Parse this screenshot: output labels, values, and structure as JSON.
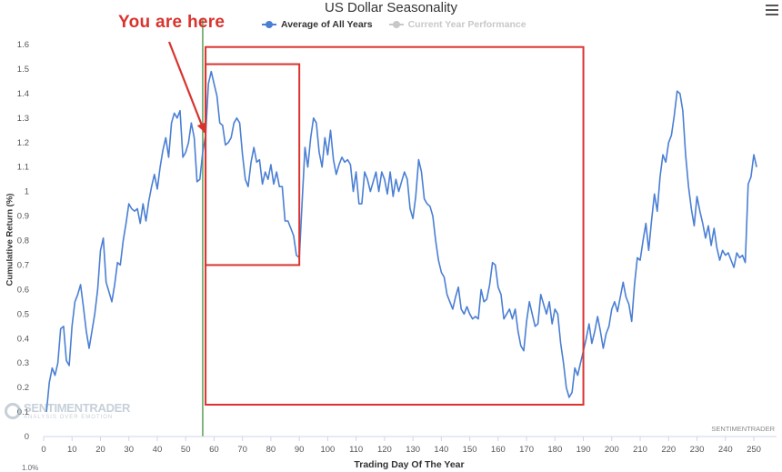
{
  "menu_icon": "hamburger-menu-icon",
  "annotation": {
    "text": "You are here",
    "arrow_to_day": 57,
    "color": "#d9332e"
  },
  "watermark": {
    "name": "SENTIMENTRADER",
    "tagline": "ANALYSIS OVER EMOTION"
  },
  "credit": "SENTIMENTRADER",
  "cutoff_label": "1.0%",
  "chart_data": {
    "type": "line",
    "title": "US Dollar Seasonality",
    "xlabel": "Trading Day Of The Year",
    "ylabel": "Cumulative Return (%)",
    "xlim": [
      0,
      258
    ],
    "ylim": [
      0,
      1.6
    ],
    "xticks": [
      0,
      10,
      20,
      30,
      40,
      50,
      60,
      70,
      80,
      90,
      100,
      110,
      120,
      130,
      140,
      150,
      160,
      170,
      180,
      190,
      200,
      210,
      220,
      230,
      240,
      250
    ],
    "yticks": [
      0,
      0.1,
      0.2,
      0.3,
      0.4,
      0.5,
      0.6,
      0.7,
      0.8,
      0.9,
      1,
      1.1,
      1.2,
      1.3,
      1.4,
      1.5,
      1.6
    ],
    "ytick_labels": [
      "0",
      "0.1",
      "0.2",
      "0.3",
      "0.4",
      "0.5",
      "0.6",
      "0.7",
      "0.8",
      "0.9",
      "1",
      "1.1",
      "1.2",
      "1.3",
      "1.4",
      "1.5",
      "1.6"
    ],
    "grid": false,
    "legend_position": "top-center",
    "current_day_marker": {
      "x": 56,
      "color": "#5a9e57"
    },
    "highlight_boxes": [
      {
        "x": [
          57,
          190
        ],
        "y": [
          0.13,
          1.59
        ],
        "color": "#d9332e"
      },
      {
        "x": [
          57,
          90
        ],
        "y": [
          0.7,
          1.52
        ],
        "color": "#d9332e"
      }
    ],
    "series": [
      {
        "name": "Average of All Years",
        "color": "#4a7fd4",
        "visible": true,
        "points": [
          [
            1,
            0.1
          ],
          [
            2,
            0.22
          ],
          [
            3,
            0.28
          ],
          [
            4,
            0.25
          ],
          [
            5,
            0.3
          ],
          [
            6,
            0.44
          ],
          [
            7,
            0.45
          ],
          [
            8,
            0.31
          ],
          [
            9,
            0.29
          ],
          [
            10,
            0.45
          ],
          [
            11,
            0.55
          ],
          [
            12,
            0.58
          ],
          [
            13,
            0.62
          ],
          [
            14,
            0.53
          ],
          [
            15,
            0.43
          ],
          [
            16,
            0.36
          ],
          [
            17,
            0.43
          ],
          [
            18,
            0.5
          ],
          [
            19,
            0.6
          ],
          [
            20,
            0.76
          ],
          [
            21,
            0.81
          ],
          [
            22,
            0.63
          ],
          [
            23,
            0.59
          ],
          [
            24,
            0.55
          ],
          [
            25,
            0.62
          ],
          [
            26,
            0.71
          ],
          [
            27,
            0.7
          ],
          [
            28,
            0.8
          ],
          [
            29,
            0.87
          ],
          [
            30,
            0.95
          ],
          [
            31,
            0.93
          ],
          [
            32,
            0.92
          ],
          [
            33,
            0.93
          ],
          [
            34,
            0.87
          ],
          [
            35,
            0.95
          ],
          [
            36,
            0.88
          ],
          [
            37,
            0.96
          ],
          [
            38,
            1.02
          ],
          [
            39,
            1.07
          ],
          [
            40,
            1.01
          ],
          [
            41,
            1.1
          ],
          [
            42,
            1.17
          ],
          [
            43,
            1.22
          ],
          [
            44,
            1.14
          ],
          [
            45,
            1.28
          ],
          [
            46,
            1.32
          ],
          [
            47,
            1.3
          ],
          [
            48,
            1.33
          ],
          [
            49,
            1.14
          ],
          [
            50,
            1.16
          ],
          [
            51,
            1.2
          ],
          [
            52,
            1.28
          ],
          [
            53,
            1.22
          ],
          [
            54,
            1.04
          ],
          [
            55,
            1.05
          ],
          [
            56,
            1.16
          ],
          [
            57,
            1.23
          ],
          [
            58,
            1.44
          ],
          [
            59,
            1.49
          ],
          [
            60,
            1.44
          ],
          [
            61,
            1.39
          ],
          [
            62,
            1.28
          ],
          [
            63,
            1.27
          ],
          [
            64,
            1.19
          ],
          [
            65,
            1.2
          ],
          [
            66,
            1.22
          ],
          [
            67,
            1.28
          ],
          [
            68,
            1.3
          ],
          [
            69,
            1.28
          ],
          [
            70,
            1.15
          ],
          [
            71,
            1.05
          ],
          [
            72,
            1.02
          ],
          [
            73,
            1.12
          ],
          [
            74,
            1.18
          ],
          [
            75,
            1.12
          ],
          [
            76,
            1.13
          ],
          [
            77,
            1.03
          ],
          [
            78,
            1.08
          ],
          [
            79,
            1.05
          ],
          [
            80,
            1.11
          ],
          [
            81,
            1.03
          ],
          [
            82,
            1.08
          ],
          [
            83,
            1.02
          ],
          [
            84,
            1.02
          ],
          [
            85,
            0.88
          ],
          [
            86,
            0.88
          ],
          [
            87,
            0.85
          ],
          [
            88,
            0.82
          ],
          [
            89,
            0.74
          ],
          [
            90,
            0.73
          ],
          [
            91,
            0.96
          ],
          [
            92,
            1.18
          ],
          [
            93,
            1.1
          ],
          [
            94,
            1.22
          ],
          [
            95,
            1.3
          ],
          [
            96,
            1.28
          ],
          [
            97,
            1.16
          ],
          [
            98,
            1.1
          ],
          [
            99,
            1.22
          ],
          [
            100,
            1.15
          ],
          [
            101,
            1.25
          ],
          [
            102,
            1.13
          ],
          [
            103,
            1.07
          ],
          [
            104,
            1.11
          ],
          [
            105,
            1.14
          ],
          [
            106,
            1.12
          ],
          [
            107,
            1.13
          ],
          [
            108,
            1.11
          ],
          [
            109,
            1.0
          ],
          [
            110,
            1.08
          ],
          [
            111,
            0.95
          ],
          [
            112,
            0.95
          ],
          [
            113,
            1.08
          ],
          [
            114,
            1.05
          ],
          [
            115,
            1.0
          ],
          [
            116,
            1.04
          ],
          [
            117,
            1.08
          ],
          [
            118,
            1.0
          ],
          [
            119,
            1.08
          ],
          [
            120,
            1.05
          ],
          [
            121,
            0.99
          ],
          [
            122,
            1.08
          ],
          [
            123,
            0.98
          ],
          [
            124,
            1.05
          ],
          [
            125,
            1.0
          ],
          [
            126,
            1.04
          ],
          [
            127,
            1.08
          ],
          [
            128,
            1.05
          ],
          [
            129,
            0.93
          ],
          [
            130,
            0.89
          ],
          [
            131,
            0.98
          ],
          [
            132,
            1.13
          ],
          [
            133,
            1.08
          ],
          [
            134,
            0.97
          ],
          [
            135,
            0.95
          ],
          [
            136,
            0.94
          ],
          [
            137,
            0.9
          ],
          [
            138,
            0.8
          ],
          [
            139,
            0.72
          ],
          [
            140,
            0.67
          ],
          [
            141,
            0.65
          ],
          [
            142,
            0.58
          ],
          [
            143,
            0.55
          ],
          [
            144,
            0.52
          ],
          [
            145,
            0.57
          ],
          [
            146,
            0.61
          ],
          [
            147,
            0.52
          ],
          [
            148,
            0.5
          ],
          [
            149,
            0.53
          ],
          [
            150,
            0.5
          ],
          [
            151,
            0.48
          ],
          [
            152,
            0.49
          ],
          [
            153,
            0.48
          ],
          [
            154,
            0.6
          ],
          [
            155,
            0.55
          ],
          [
            156,
            0.56
          ],
          [
            157,
            0.62
          ],
          [
            158,
            0.71
          ],
          [
            159,
            0.7
          ],
          [
            160,
            0.61
          ],
          [
            161,
            0.58
          ],
          [
            162,
            0.48
          ],
          [
            163,
            0.5
          ],
          [
            164,
            0.52
          ],
          [
            165,
            0.48
          ],
          [
            166,
            0.52
          ],
          [
            167,
            0.43
          ],
          [
            168,
            0.37
          ],
          [
            169,
            0.35
          ],
          [
            170,
            0.47
          ],
          [
            171,
            0.55
          ],
          [
            172,
            0.5
          ],
          [
            173,
            0.45
          ],
          [
            174,
            0.46
          ],
          [
            175,
            0.58
          ],
          [
            176,
            0.54
          ],
          [
            177,
            0.5
          ],
          [
            178,
            0.55
          ],
          [
            179,
            0.46
          ],
          [
            180,
            0.52
          ],
          [
            181,
            0.5
          ],
          [
            182,
            0.38
          ],
          [
            183,
            0.3
          ],
          [
            184,
            0.2
          ],
          [
            185,
            0.16
          ],
          [
            186,
            0.18
          ],
          [
            187,
            0.28
          ],
          [
            188,
            0.25
          ],
          [
            189,
            0.3
          ],
          [
            190,
            0.35
          ],
          [
            191,
            0.4
          ],
          [
            192,
            0.46
          ],
          [
            193,
            0.38
          ],
          [
            194,
            0.43
          ],
          [
            195,
            0.49
          ],
          [
            196,
            0.43
          ],
          [
            197,
            0.36
          ],
          [
            198,
            0.42
          ],
          [
            199,
            0.45
          ],
          [
            200,
            0.52
          ],
          [
            201,
            0.55
          ],
          [
            202,
            0.51
          ],
          [
            203,
            0.57
          ],
          [
            204,
            0.63
          ],
          [
            205,
            0.57
          ],
          [
            206,
            0.54
          ],
          [
            207,
            0.47
          ],
          [
            208,
            0.62
          ],
          [
            209,
            0.73
          ],
          [
            210,
            0.72
          ],
          [
            211,
            0.8
          ],
          [
            212,
            0.87
          ],
          [
            213,
            0.76
          ],
          [
            214,
            0.88
          ],
          [
            215,
            0.99
          ],
          [
            216,
            0.92
          ],
          [
            217,
            1.06
          ],
          [
            218,
            1.15
          ],
          [
            219,
            1.12
          ],
          [
            220,
            1.2
          ],
          [
            221,
            1.23
          ],
          [
            222,
            1.31
          ],
          [
            223,
            1.41
          ],
          [
            224,
            1.4
          ],
          [
            225,
            1.33
          ],
          [
            226,
            1.15
          ],
          [
            227,
            1.02
          ],
          [
            228,
            0.93
          ],
          [
            229,
            0.86
          ],
          [
            230,
            0.98
          ],
          [
            231,
            0.92
          ],
          [
            232,
            0.87
          ],
          [
            233,
            0.81
          ],
          [
            234,
            0.86
          ],
          [
            235,
            0.78
          ],
          [
            236,
            0.85
          ],
          [
            237,
            0.77
          ],
          [
            238,
            0.72
          ],
          [
            239,
            0.76
          ],
          [
            240,
            0.74
          ],
          [
            241,
            0.75
          ],
          [
            242,
            0.72
          ],
          [
            243,
            0.69
          ],
          [
            244,
            0.75
          ],
          [
            245,
            0.73
          ],
          [
            246,
            0.74
          ],
          [
            247,
            0.71
          ],
          [
            248,
            1.03
          ],
          [
            249,
            1.06
          ],
          [
            250,
            1.15
          ],
          [
            251,
            1.1
          ]
        ]
      },
      {
        "name": "Current Year Performance",
        "color": "#c8c8c8",
        "visible": false,
        "points": []
      }
    ]
  }
}
